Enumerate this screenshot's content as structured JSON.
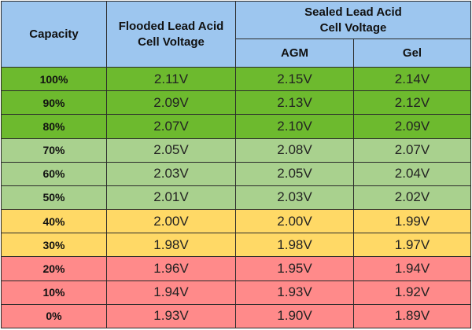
{
  "headers": {
    "capacity": "Capacity",
    "flooded_line1": "Flooded Lead Acid",
    "flooded_line2": "Cell Voltage",
    "sealed_line1": "Sealed Lead Acid",
    "sealed_line2": "Cell Voltage",
    "agm": "AGM",
    "gel": "Gel"
  },
  "colors": {
    "header": "#9dc6ef",
    "green": "#6dba2e",
    "light_green": "#a9d18e",
    "yellow": "#ffd966",
    "red": "#ff8a8a"
  },
  "rows": [
    {
      "capacity": "100%",
      "flooded": "2.11V",
      "agm": "2.15V",
      "gel": "2.14V",
      "level": "green"
    },
    {
      "capacity": "90%",
      "flooded": "2.09V",
      "agm": "2.13V",
      "gel": "2.12V",
      "level": "green"
    },
    {
      "capacity": "80%",
      "flooded": "2.07V",
      "agm": "2.10V",
      "gel": "2.09V",
      "level": "green"
    },
    {
      "capacity": "70%",
      "flooded": "2.05V",
      "agm": "2.08V",
      "gel": "2.07V",
      "level": "lightgreen"
    },
    {
      "capacity": "60%",
      "flooded": "2.03V",
      "agm": "2.05V",
      "gel": "2.04V",
      "level": "lightgreen"
    },
    {
      "capacity": "50%",
      "flooded": "2.01V",
      "agm": "2.03V",
      "gel": "2.02V",
      "level": "lightgreen"
    },
    {
      "capacity": "40%",
      "flooded": "2.00V",
      "agm": "2.00V",
      "gel": "1.99V",
      "level": "yellow"
    },
    {
      "capacity": "30%",
      "flooded": "1.98V",
      "agm": "1.98V",
      "gel": "1.97V",
      "level": "yellow"
    },
    {
      "capacity": "20%",
      "flooded": "1.96V",
      "agm": "1.95V",
      "gel": "1.94V",
      "level": "red"
    },
    {
      "capacity": "10%",
      "flooded": "1.94V",
      "agm": "1.93V",
      "gel": "1.92V",
      "level": "red"
    },
    {
      "capacity": "0%",
      "flooded": "1.93V",
      "agm": "1.90V",
      "gel": "1.89V",
      "level": "red"
    }
  ]
}
